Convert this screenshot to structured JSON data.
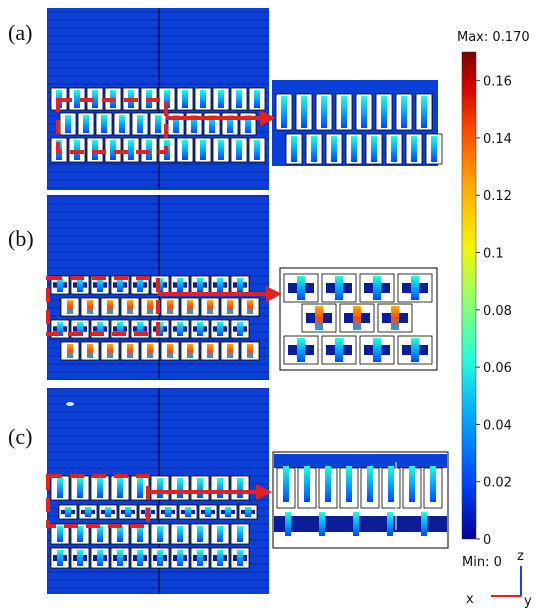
{
  "panels": [
    {
      "label": "(a)"
    },
    {
      "label": "(b)"
    },
    {
      "label": "(c)"
    }
  ],
  "colorbar": {
    "max_label": "Max: 0.170",
    "min_label": "Min: 0",
    "ticks": [
      "0.16",
      "0.14",
      "0.12",
      "0.1",
      "0.08",
      "0.06",
      "0.04",
      "0.02",
      "0"
    ],
    "colors": [
      "#7a0000",
      "#d40000",
      "#ff4a00",
      "#ffae00",
      "#f5f500",
      "#9bff63",
      "#23ffd9",
      "#00a8ff",
      "#0046ff",
      "#00009a"
    ]
  },
  "axes": {
    "z": "z",
    "x": "x",
    "y": "y"
  },
  "palette": {
    "field": "#0a3fd8",
    "field_dark": "#0a1e9a",
    "arrow": "#e52020",
    "hot": "#ff7a00"
  }
}
